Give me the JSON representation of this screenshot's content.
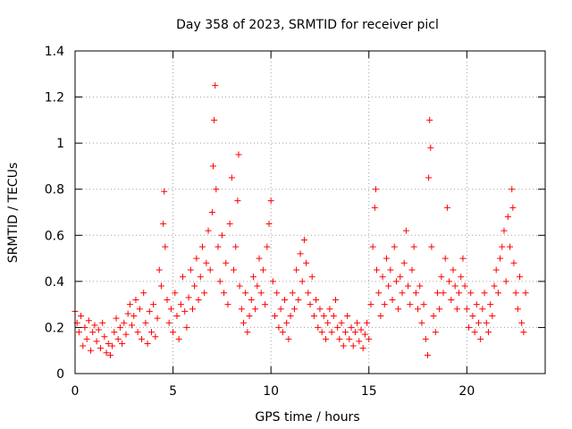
{
  "chart_data": {
    "type": "scatter",
    "title": "Day 358 of 2023, SRMTID for receiver picl",
    "xlabel": "GPS time / hours",
    "ylabel": "SRMTID / TECUs",
    "xlim": [
      0,
      24
    ],
    "ylim": [
      0,
      1.4
    ],
    "xticks": [
      0,
      5,
      10,
      15,
      20
    ],
    "xtick_labels": [
      "0",
      "5",
      "10",
      "15",
      "20"
    ],
    "yticks": [
      0,
      0.2,
      0.4,
      0.6,
      0.8,
      1.0,
      1.2,
      1.4
    ],
    "ytick_labels": [
      "0",
      "0.2",
      "0.4",
      "0.6",
      "0.8",
      "1",
      "1.2",
      "1.4"
    ],
    "grid": true,
    "marker": "plus",
    "color": "#ff0000",
    "series": [
      {
        "name": "SRMTID",
        "points": [
          [
            0.0,
            0.27
          ],
          [
            0.1,
            0.22
          ],
          [
            0.2,
            0.18
          ],
          [
            0.3,
            0.25
          ],
          [
            0.4,
            0.12
          ],
          [
            0.5,
            0.2
          ],
          [
            0.6,
            0.15
          ],
          [
            0.7,
            0.23
          ],
          [
            0.8,
            0.1
          ],
          [
            0.9,
            0.18
          ],
          [
            1.0,
            0.21
          ],
          [
            1.1,
            0.14
          ],
          [
            1.2,
            0.19
          ],
          [
            1.3,
            0.11
          ],
          [
            1.4,
            0.22
          ],
          [
            1.5,
            0.16
          ],
          [
            1.6,
            0.09
          ],
          [
            1.7,
            0.13
          ],
          [
            1.8,
            0.08
          ],
          [
            1.9,
            0.12
          ],
          [
            2.0,
            0.18
          ],
          [
            2.1,
            0.24
          ],
          [
            2.2,
            0.15
          ],
          [
            2.3,
            0.2
          ],
          [
            2.4,
            0.13
          ],
          [
            2.5,
            0.22
          ],
          [
            2.6,
            0.17
          ],
          [
            2.7,
            0.26
          ],
          [
            2.8,
            0.3
          ],
          [
            2.9,
            0.21
          ],
          [
            3.0,
            0.25
          ],
          [
            3.1,
            0.32
          ],
          [
            3.2,
            0.18
          ],
          [
            3.3,
            0.28
          ],
          [
            3.4,
            0.15
          ],
          [
            3.5,
            0.35
          ],
          [
            3.6,
            0.22
          ],
          [
            3.7,
            0.13
          ],
          [
            3.8,
            0.27
          ],
          [
            3.9,
            0.18
          ],
          [
            4.0,
            0.3
          ],
          [
            4.1,
            0.16
          ],
          [
            4.2,
            0.24
          ],
          [
            4.3,
            0.45
          ],
          [
            4.4,
            0.38
          ],
          [
            4.5,
            0.65
          ],
          [
            4.55,
            0.79
          ],
          [
            4.6,
            0.55
          ],
          [
            4.7,
            0.32
          ],
          [
            4.8,
            0.22
          ],
          [
            4.9,
            0.28
          ],
          [
            5.0,
            0.18
          ],
          [
            5.1,
            0.35
          ],
          [
            5.2,
            0.25
          ],
          [
            5.3,
            0.15
          ],
          [
            5.4,
            0.3
          ],
          [
            5.5,
            0.42
          ],
          [
            5.6,
            0.27
          ],
          [
            5.7,
            0.2
          ],
          [
            5.8,
            0.33
          ],
          [
            5.9,
            0.45
          ],
          [
            6.0,
            0.28
          ],
          [
            6.1,
            0.38
          ],
          [
            6.2,
            0.5
          ],
          [
            6.3,
            0.32
          ],
          [
            6.4,
            0.42
          ],
          [
            6.5,
            0.55
          ],
          [
            6.6,
            0.35
          ],
          [
            6.7,
            0.48
          ],
          [
            6.8,
            0.62
          ],
          [
            6.9,
            0.45
          ],
          [
            7.0,
            0.7
          ],
          [
            7.05,
            0.9
          ],
          [
            7.1,
            1.1
          ],
          [
            7.15,
            1.25
          ],
          [
            7.2,
            0.8
          ],
          [
            7.3,
            0.55
          ],
          [
            7.4,
            0.4
          ],
          [
            7.5,
            0.6
          ],
          [
            7.6,
            0.35
          ],
          [
            7.7,
            0.48
          ],
          [
            7.8,
            0.3
          ],
          [
            7.9,
            0.65
          ],
          [
            8.0,
            0.85
          ],
          [
            8.1,
            0.45
          ],
          [
            8.2,
            0.55
          ],
          [
            8.3,
            0.75
          ],
          [
            8.35,
            0.95
          ],
          [
            8.4,
            0.38
          ],
          [
            8.5,
            0.28
          ],
          [
            8.6,
            0.22
          ],
          [
            8.7,
            0.35
          ],
          [
            8.8,
            0.18
          ],
          [
            8.9,
            0.25
          ],
          [
            9.0,
            0.32
          ],
          [
            9.1,
            0.42
          ],
          [
            9.2,
            0.28
          ],
          [
            9.3,
            0.38
          ],
          [
            9.4,
            0.5
          ],
          [
            9.5,
            0.35
          ],
          [
            9.6,
            0.45
          ],
          [
            9.7,
            0.3
          ],
          [
            9.8,
            0.55
          ],
          [
            9.9,
            0.65
          ],
          [
            10.0,
            0.75
          ],
          [
            10.1,
            0.4
          ],
          [
            10.2,
            0.25
          ],
          [
            10.3,
            0.35
          ],
          [
            10.4,
            0.2
          ],
          [
            10.5,
            0.28
          ],
          [
            10.6,
            0.18
          ],
          [
            10.7,
            0.32
          ],
          [
            10.8,
            0.22
          ],
          [
            10.9,
            0.15
          ],
          [
            11.0,
            0.25
          ],
          [
            11.1,
            0.35
          ],
          [
            11.2,
            0.28
          ],
          [
            11.3,
            0.45
          ],
          [
            11.4,
            0.32
          ],
          [
            11.5,
            0.52
          ],
          [
            11.6,
            0.4
          ],
          [
            11.7,
            0.58
          ],
          [
            11.8,
            0.48
          ],
          [
            11.9,
            0.35
          ],
          [
            12.0,
            0.3
          ],
          [
            12.1,
            0.42
          ],
          [
            12.2,
            0.25
          ],
          [
            12.3,
            0.32
          ],
          [
            12.4,
            0.2
          ],
          [
            12.5,
            0.28
          ],
          [
            12.6,
            0.18
          ],
          [
            12.7,
            0.25
          ],
          [
            12.8,
            0.15
          ],
          [
            12.9,
            0.22
          ],
          [
            13.0,
            0.28
          ],
          [
            13.1,
            0.18
          ],
          [
            13.2,
            0.25
          ],
          [
            13.3,
            0.32
          ],
          [
            13.4,
            0.2
          ],
          [
            13.5,
            0.15
          ],
          [
            13.6,
            0.22
          ],
          [
            13.7,
            0.12
          ],
          [
            13.8,
            0.18
          ],
          [
            13.9,
            0.25
          ],
          [
            14.0,
            0.15
          ],
          [
            14.1,
            0.2
          ],
          [
            14.2,
            0.12
          ],
          [
            14.3,
            0.18
          ],
          [
            14.4,
            0.22
          ],
          [
            14.5,
            0.14
          ],
          [
            14.6,
            0.19
          ],
          [
            14.7,
            0.11
          ],
          [
            14.8,
            0.17
          ],
          [
            14.9,
            0.22
          ],
          [
            15.0,
            0.15
          ],
          [
            15.1,
            0.3
          ],
          [
            15.2,
            0.55
          ],
          [
            15.3,
            0.72
          ],
          [
            15.35,
            0.8
          ],
          [
            15.4,
            0.45
          ],
          [
            15.5,
            0.35
          ],
          [
            15.6,
            0.25
          ],
          [
            15.7,
            0.42
          ],
          [
            15.8,
            0.3
          ],
          [
            15.9,
            0.5
          ],
          [
            16.0,
            0.38
          ],
          [
            16.1,
            0.45
          ],
          [
            16.2,
            0.32
          ],
          [
            16.3,
            0.55
          ],
          [
            16.4,
            0.4
          ],
          [
            16.5,
            0.28
          ],
          [
            16.6,
            0.42
          ],
          [
            16.7,
            0.35
          ],
          [
            16.8,
            0.48
          ],
          [
            16.9,
            0.62
          ],
          [
            17.0,
            0.38
          ],
          [
            17.1,
            0.3
          ],
          [
            17.2,
            0.45
          ],
          [
            17.3,
            0.55
          ],
          [
            17.4,
            0.35
          ],
          [
            17.5,
            0.28
          ],
          [
            17.6,
            0.38
          ],
          [
            17.7,
            0.22
          ],
          [
            17.8,
            0.3
          ],
          [
            17.9,
            0.15
          ],
          [
            18.0,
            0.08
          ],
          [
            18.05,
            0.85
          ],
          [
            18.1,
            1.1
          ],
          [
            18.15,
            0.98
          ],
          [
            18.2,
            0.55
          ],
          [
            18.3,
            0.25
          ],
          [
            18.4,
            0.18
          ],
          [
            18.5,
            0.35
          ],
          [
            18.6,
            0.28
          ],
          [
            18.7,
            0.42
          ],
          [
            18.8,
            0.35
          ],
          [
            18.9,
            0.5
          ],
          [
            19.0,
            0.72
          ],
          [
            19.1,
            0.4
          ],
          [
            19.2,
            0.32
          ],
          [
            19.3,
            0.45
          ],
          [
            19.4,
            0.38
          ],
          [
            19.5,
            0.28
          ],
          [
            19.6,
            0.35
          ],
          [
            19.7,
            0.42
          ],
          [
            19.8,
            0.5
          ],
          [
            19.9,
            0.38
          ],
          [
            20.0,
            0.28
          ],
          [
            20.1,
            0.2
          ],
          [
            20.2,
            0.35
          ],
          [
            20.3,
            0.25
          ],
          [
            20.4,
            0.18
          ],
          [
            20.5,
            0.3
          ],
          [
            20.6,
            0.22
          ],
          [
            20.7,
            0.15
          ],
          [
            20.8,
            0.28
          ],
          [
            20.9,
            0.35
          ],
          [
            21.0,
            0.22
          ],
          [
            21.1,
            0.18
          ],
          [
            21.2,
            0.3
          ],
          [
            21.3,
            0.25
          ],
          [
            21.4,
            0.38
          ],
          [
            21.5,
            0.45
          ],
          [
            21.6,
            0.35
          ],
          [
            21.7,
            0.5
          ],
          [
            21.8,
            0.55
          ],
          [
            21.9,
            0.62
          ],
          [
            22.0,
            0.4
          ],
          [
            22.1,
            0.68
          ],
          [
            22.2,
            0.55
          ],
          [
            22.3,
            0.8
          ],
          [
            22.35,
            0.72
          ],
          [
            22.4,
            0.48
          ],
          [
            22.5,
            0.35
          ],
          [
            22.6,
            0.28
          ],
          [
            22.7,
            0.42
          ],
          [
            22.8,
            0.22
          ],
          [
            22.9,
            0.18
          ],
          [
            23.0,
            0.35
          ]
        ]
      }
    ]
  }
}
